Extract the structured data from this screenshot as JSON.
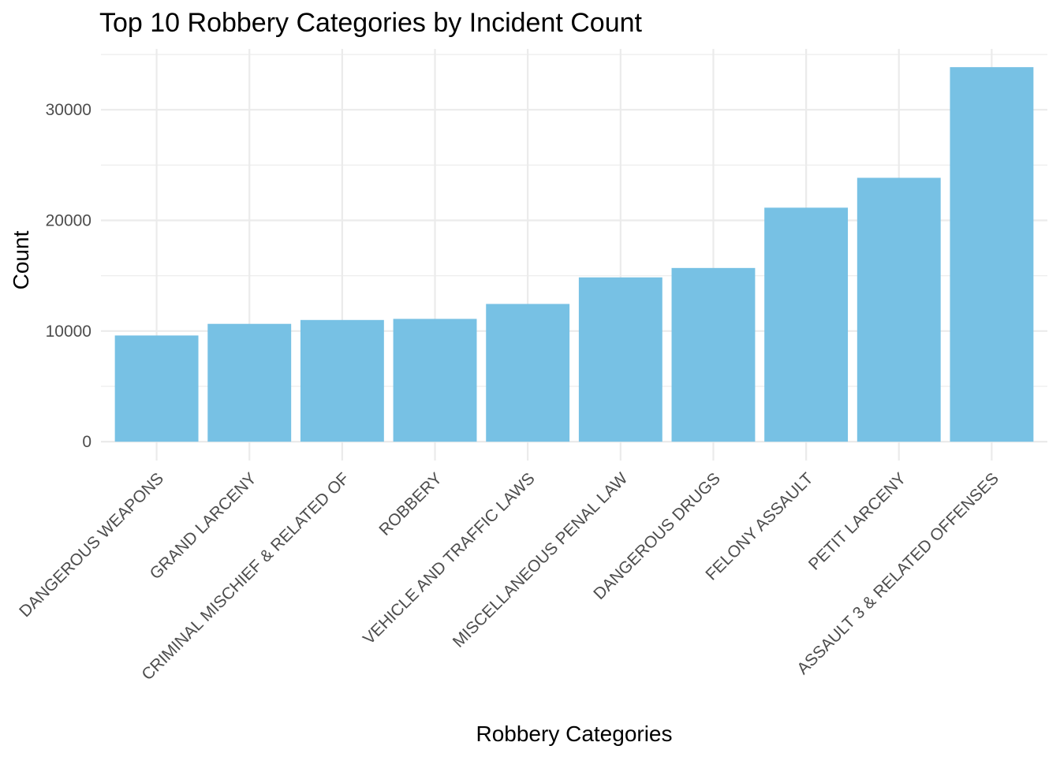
{
  "chart_data": {
    "type": "bar",
    "title": "Top 10 Robbery Categories by Incident Count",
    "xlabel": "Robbery Categories",
    "ylabel": "Count",
    "categories": [
      "DANGEROUS WEAPONS",
      "GRAND LARCENY",
      "CRIMINAL MISCHIEF & RELATED OF",
      "ROBBERY",
      "VEHICLE AND TRAFFIC LAWS",
      "MISCELLANEOUS PENAL LAW",
      "DANGEROUS DRUGS",
      "FELONY ASSAULT",
      "PETIT LARCENY",
      "ASSAULT 3 & RELATED OFFENSES"
    ],
    "values": [
      9600,
      10650,
      11000,
      11100,
      12450,
      14850,
      15700,
      21150,
      23850,
      33850
    ],
    "ylim": [
      -1700,
      35500
    ],
    "yticks": [
      0,
      10000,
      20000,
      30000
    ],
    "yticks_labels": [
      "0",
      "10000",
      "20000",
      "30000"
    ],
    "grid": true,
    "legend": "none",
    "bar_color": "#77c1e4"
  }
}
